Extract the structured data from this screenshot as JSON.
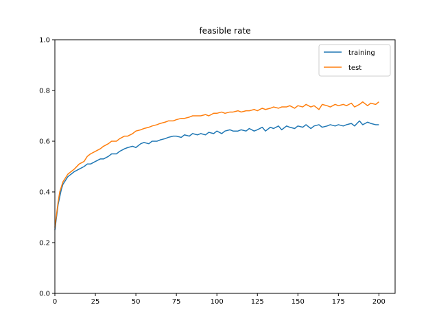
{
  "chart_data": {
    "type": "line",
    "title": "feasible rate",
    "xlabel": "",
    "ylabel": "",
    "xlim": [
      0,
      210
    ],
    "ylim": [
      0.0,
      1.0
    ],
    "xticks": [
      0,
      25,
      50,
      75,
      100,
      125,
      150,
      175,
      200
    ],
    "yticks": [
      0.0,
      0.2,
      0.4,
      0.6,
      0.8,
      1.0
    ],
    "xtick_labels": [
      "0",
      "25",
      "50",
      "75",
      "100",
      "125",
      "150",
      "175",
      "200"
    ],
    "ytick_labels": [
      "0.0",
      "0.2",
      "0.4",
      "0.6",
      "0.8",
      "1.0"
    ],
    "grid": false,
    "legend_position": "top-right",
    "series": [
      {
        "name": "training",
        "color": "#1f77b4",
        "x": [
          0,
          1,
          2,
          3,
          4,
          5,
          6,
          8,
          10,
          12,
          15,
          18,
          20,
          22,
          25,
          28,
          30,
          33,
          35,
          38,
          40,
          43,
          45,
          48,
          50,
          53,
          55,
          58,
          60,
          63,
          65,
          68,
          70,
          73,
          75,
          78,
          80,
          83,
          85,
          88,
          90,
          93,
          95,
          98,
          100,
          103,
          105,
          108,
          110,
          113,
          115,
          118,
          120,
          123,
          125,
          128,
          130,
          133,
          135,
          138,
          140,
          143,
          145,
          148,
          150,
          153,
          155,
          158,
          160,
          163,
          165,
          168,
          170,
          173,
          175,
          178,
          180,
          183,
          185,
          188,
          190,
          193,
          195,
          198,
          200
        ],
        "values": [
          0.25,
          0.3,
          0.35,
          0.38,
          0.41,
          0.43,
          0.44,
          0.46,
          0.47,
          0.48,
          0.49,
          0.5,
          0.51,
          0.51,
          0.52,
          0.53,
          0.53,
          0.54,
          0.55,
          0.55,
          0.56,
          0.57,
          0.575,
          0.58,
          0.575,
          0.59,
          0.595,
          0.59,
          0.6,
          0.6,
          0.605,
          0.61,
          0.615,
          0.62,
          0.62,
          0.615,
          0.625,
          0.62,
          0.63,
          0.625,
          0.63,
          0.625,
          0.635,
          0.63,
          0.64,
          0.63,
          0.64,
          0.645,
          0.64,
          0.64,
          0.645,
          0.64,
          0.65,
          0.64,
          0.645,
          0.655,
          0.64,
          0.655,
          0.65,
          0.66,
          0.645,
          0.66,
          0.655,
          0.65,
          0.66,
          0.655,
          0.665,
          0.65,
          0.66,
          0.665,
          0.655,
          0.66,
          0.665,
          0.66,
          0.665,
          0.66,
          0.665,
          0.67,
          0.66,
          0.68,
          0.665,
          0.675,
          0.67,
          0.665,
          0.665
        ]
      },
      {
        "name": "test",
        "color": "#ff7f0e",
        "x": [
          0,
          1,
          2,
          3,
          4,
          5,
          6,
          8,
          10,
          12,
          15,
          18,
          20,
          22,
          25,
          28,
          30,
          33,
          35,
          38,
          40,
          43,
          45,
          48,
          50,
          53,
          55,
          58,
          60,
          63,
          65,
          68,
          70,
          73,
          75,
          78,
          80,
          83,
          85,
          88,
          90,
          93,
          95,
          98,
          100,
          103,
          105,
          108,
          110,
          113,
          115,
          118,
          120,
          123,
          125,
          128,
          130,
          133,
          135,
          138,
          140,
          143,
          145,
          148,
          150,
          153,
          155,
          158,
          160,
          163,
          165,
          168,
          170,
          173,
          175,
          178,
          180,
          183,
          185,
          188,
          190,
          193,
          195,
          198,
          200
        ],
        "values": [
          0.26,
          0.31,
          0.36,
          0.4,
          0.42,
          0.44,
          0.45,
          0.47,
          0.48,
          0.49,
          0.51,
          0.52,
          0.54,
          0.55,
          0.56,
          0.57,
          0.58,
          0.59,
          0.6,
          0.6,
          0.61,
          0.62,
          0.62,
          0.63,
          0.64,
          0.645,
          0.65,
          0.655,
          0.66,
          0.665,
          0.67,
          0.675,
          0.68,
          0.68,
          0.685,
          0.69,
          0.69,
          0.695,
          0.7,
          0.7,
          0.7,
          0.705,
          0.7,
          0.71,
          0.71,
          0.715,
          0.71,
          0.715,
          0.715,
          0.72,
          0.715,
          0.72,
          0.72,
          0.725,
          0.72,
          0.73,
          0.725,
          0.73,
          0.735,
          0.73,
          0.735,
          0.735,
          0.74,
          0.73,
          0.74,
          0.735,
          0.745,
          0.735,
          0.74,
          0.725,
          0.745,
          0.74,
          0.735,
          0.745,
          0.74,
          0.745,
          0.74,
          0.75,
          0.735,
          0.745,
          0.755,
          0.74,
          0.75,
          0.745,
          0.755
        ]
      }
    ]
  }
}
